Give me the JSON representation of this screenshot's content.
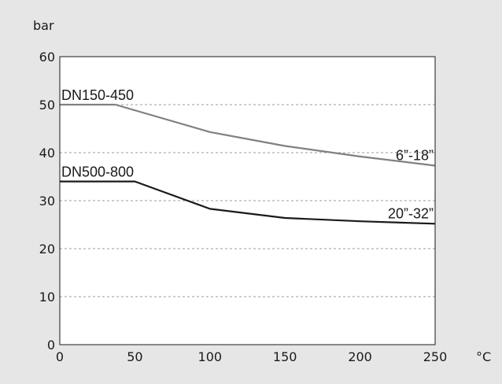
{
  "chart_data": {
    "type": "line",
    "ylabel": "bar",
    "xlabel": "°C",
    "xlim": [
      0,
      250
    ],
    "ylim": [
      0,
      60
    ],
    "xticks": [
      0,
      50,
      100,
      150,
      200,
      250
    ],
    "yticks": [
      0,
      10,
      20,
      30,
      40,
      50,
      60
    ],
    "grid": "horizontal-dashed",
    "series": [
      {
        "label_left": "DN150-450",
        "label_right": "6”-18”",
        "color": "#808080",
        "x": [
          0,
          37,
          100,
          150,
          200,
          250
        ],
        "y": [
          50,
          50,
          44.3,
          41.4,
          39.2,
          37.3
        ]
      },
      {
        "label_left": "DN500-800",
        "label_right": "20”-32”",
        "color": "#1a1a1a",
        "x": [
          0,
          50,
          100,
          150,
          200,
          250
        ],
        "y": [
          34,
          34,
          28.3,
          26.4,
          25.7,
          25.2
        ]
      }
    ]
  }
}
